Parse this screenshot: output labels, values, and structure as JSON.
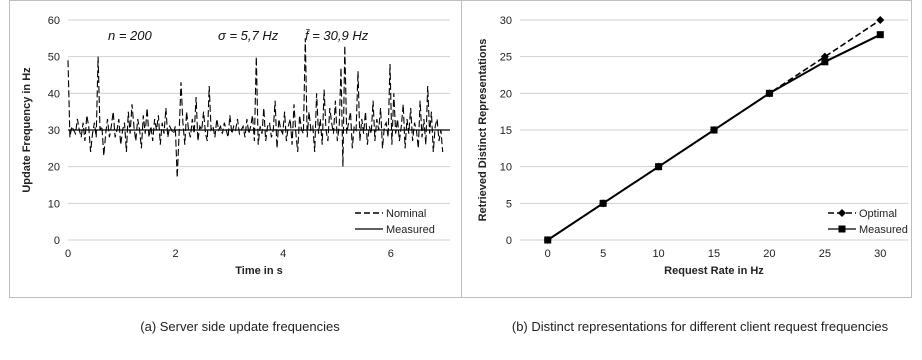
{
  "captions": {
    "a": "(a) Server side update frequencies",
    "b": "(b) Distinct representations for different client request frequencies"
  },
  "chart_data": [
    {
      "type": "line",
      "xlabel": "Time in s",
      "ylabel": "Update Frequency in Hz",
      "xlim": [
        0,
        7.1
      ],
      "ylim": [
        0,
        60
      ],
      "xticks": [
        0,
        2,
        4,
        6
      ],
      "yticks": [
        0,
        10,
        20,
        30,
        40,
        50,
        60
      ],
      "grid": "horizontal",
      "legend_position": "bottom-right",
      "annotations": [
        "n = 200",
        "σ = 5,7 Hz",
        "f̄ = 30,9 Hz"
      ],
      "series": [
        {
          "name": "Nominal",
          "style": "dashed",
          "x": [
            0.0,
            0.035,
            0.07,
            0.105,
            0.14,
            0.175,
            0.21,
            0.245,
            0.28,
            0.315,
            0.35,
            0.385,
            0.42,
            0.455,
            0.49,
            0.525,
            0.56,
            0.595,
            0.63,
            0.665,
            0.7,
            0.735,
            0.77,
            0.805,
            0.84,
            0.875,
            0.91,
            0.945,
            0.98,
            1.015,
            1.05,
            1.085,
            1.12,
            1.155,
            1.19,
            1.225,
            1.26,
            1.295,
            1.33,
            1.365,
            1.4,
            1.435,
            1.47,
            1.505,
            1.54,
            1.575,
            1.61,
            1.645,
            1.68,
            1.715,
            1.75,
            1.785,
            1.82,
            1.855,
            1.89,
            1.925,
            1.96,
            1.995,
            2.03,
            2.065,
            2.1,
            2.135,
            2.17,
            2.205,
            2.24,
            2.275,
            2.31,
            2.345,
            2.38,
            2.415,
            2.45,
            2.485,
            2.52,
            2.555,
            2.59,
            2.625,
            2.66,
            2.695,
            2.73,
            2.765,
            2.8,
            2.835,
            2.87,
            2.905,
            2.94,
            2.975,
            3.01,
            3.045,
            3.08,
            3.115,
            3.15,
            3.185,
            3.22,
            3.255,
            3.29,
            3.325,
            3.36,
            3.395,
            3.43,
            3.465,
            3.5,
            3.535,
            3.57,
            3.605,
            3.64,
            3.675,
            3.71,
            3.745,
            3.78,
            3.815,
            3.85,
            3.885,
            3.92,
            3.955,
            3.99,
            4.025,
            4.06,
            4.095,
            4.13,
            4.165,
            4.2,
            4.235,
            4.27,
            4.305,
            4.34,
            4.375,
            4.41,
            4.445,
            4.48,
            4.515,
            4.55,
            4.585,
            4.62,
            4.655,
            4.69,
            4.725,
            4.76,
            4.795,
            4.83,
            4.865,
            4.9,
            4.935,
            4.97,
            5.005,
            5.04,
            5.075,
            5.11,
            5.145,
            5.18,
            5.215,
            5.25,
            5.285,
            5.32,
            5.355,
            5.39,
            5.425,
            5.46,
            5.495,
            5.53,
            5.565,
            5.6,
            5.635,
            5.67,
            5.705,
            5.74,
            5.775,
            5.81,
            5.845,
            5.88,
            5.915,
            5.95,
            5.985,
            6.02,
            6.055,
            6.09,
            6.125,
            6.16,
            6.195,
            6.23,
            6.265,
            6.3,
            6.335,
            6.37,
            6.405,
            6.44,
            6.475,
            6.51,
            6.545,
            6.58,
            6.615,
            6.65,
            6.685,
            6.72,
            6.755,
            6.79,
            6.825,
            6.86,
            6.895,
            6.93,
            6.965
          ],
          "y": [
            49,
            28,
            31,
            30,
            29,
            33,
            30,
            28,
            32,
            27,
            34,
            31,
            24,
            29,
            32,
            28,
            50,
            30,
            31,
            23,
            29,
            33,
            28,
            31,
            35,
            28,
            30,
            33,
            26,
            30,
            32,
            24,
            35,
            29,
            37,
            31,
            27,
            33,
            30,
            25,
            34,
            29,
            36,
            28,
            31,
            27,
            33,
            30,
            34,
            26,
            32,
            29,
            36,
            28,
            31,
            30,
            29,
            31,
            17,
            29,
            43,
            32,
            26,
            35,
            30,
            28,
            33,
            29,
            39,
            27,
            31,
            30,
            35,
            29,
            27,
            42,
            30,
            31,
            28,
            33,
            30,
            31,
            29,
            32,
            30,
            28,
            34,
            29,
            31,
            30,
            33,
            29,
            30,
            31,
            28,
            33,
            29,
            31,
            34,
            27,
            50,
            26,
            31,
            29,
            36,
            27,
            31,
            32,
            28,
            30,
            38,
            25,
            33,
            30,
            29,
            35,
            27,
            31,
            33,
            26,
            37,
            29,
            24,
            34,
            30,
            29,
            55,
            28,
            35,
            30,
            31,
            24,
            40,
            29,
            33,
            26,
            41,
            30,
            27,
            36,
            32,
            29,
            38,
            27,
            31,
            47,
            20,
            53,
            29,
            32,
            35,
            25,
            31,
            30,
            46,
            27,
            33,
            29,
            35,
            26,
            31,
            29,
            38,
            27,
            33,
            30,
            36,
            25,
            31,
            32,
            28,
            48,
            26,
            40,
            29,
            33,
            27,
            31,
            37,
            25,
            33,
            29,
            36,
            27,
            32,
            30,
            25,
            38,
            28,
            33,
            26,
            42,
            29,
            35,
            24,
            31,
            33,
            27,
            30,
            24
          ]
        },
        {
          "name": "Measured",
          "style": "solid",
          "x": [
            0,
            7.1
          ],
          "y": [
            30,
            30
          ]
        }
      ]
    },
    {
      "type": "line",
      "xlabel": "Request Rate in Hz",
      "ylabel": "Retrieved Distinct Representations",
      "xlim": [
        -2.5,
        32.5
      ],
      "ylim": [
        0,
        30
      ],
      "xticks": [
        0,
        5,
        10,
        15,
        20,
        25,
        30
      ],
      "yticks": [
        0,
        5,
        10,
        15,
        20,
        25,
        30
      ],
      "grid": "horizontal",
      "legend_position": "bottom-right",
      "series": [
        {
          "name": "Optimal",
          "style": "dashed",
          "marker": "diamond",
          "x": [
            0,
            5,
            10,
            15,
            20,
            25,
            30
          ],
          "y": [
            0,
            5,
            10,
            15,
            20,
            25,
            30
          ]
        },
        {
          "name": "Measured",
          "style": "solid",
          "marker": "square",
          "x": [
            0,
            5,
            10,
            15,
            20,
            25,
            30
          ],
          "y": [
            0,
            5,
            10,
            15,
            20,
            24.3,
            28
          ]
        }
      ]
    }
  ]
}
